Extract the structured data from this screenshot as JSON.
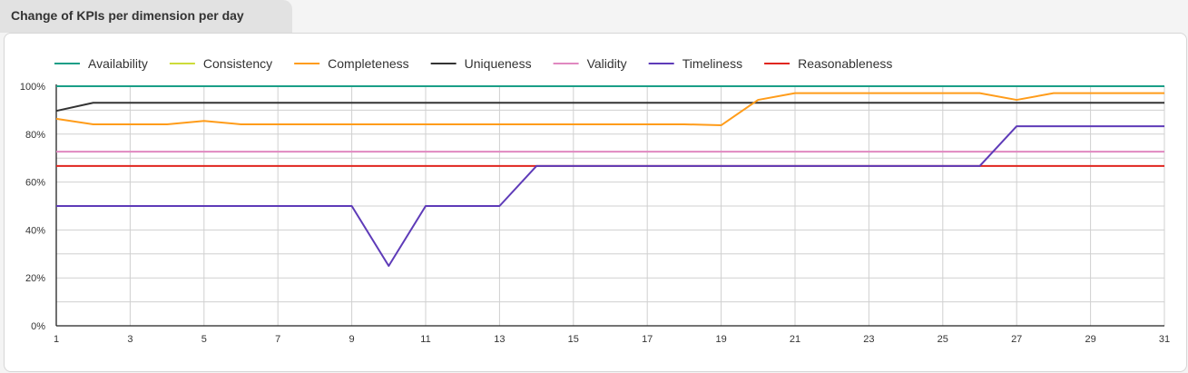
{
  "header": {
    "title": "Change of KPIs per dimension per day"
  },
  "chart_data": {
    "type": "line",
    "title": "Change of KPIs per dimension per day",
    "xlabel": "",
    "ylabel": "",
    "x": [
      1,
      2,
      3,
      4,
      5,
      6,
      7,
      8,
      9,
      10,
      11,
      12,
      13,
      14,
      15,
      16,
      17,
      18,
      19,
      20,
      21,
      22,
      23,
      24,
      25,
      26,
      27,
      28,
      29,
      30,
      31
    ],
    "xticks": [
      "1",
      "3",
      "5",
      "7",
      "9",
      "11",
      "13",
      "15",
      "17",
      "19",
      "21",
      "23",
      "25",
      "27",
      "29",
      "31"
    ],
    "yticks": [
      "0%",
      "20%",
      "40%",
      "60%",
      "80%",
      "100%"
    ],
    "ylim": [
      0,
      100
    ],
    "legend_position": "top-left",
    "grid": true,
    "series": [
      {
        "name": "Availability",
        "color": "#1a9e87",
        "values": [
          100,
          100,
          100,
          100,
          100,
          100,
          100,
          100,
          100,
          100,
          100,
          100,
          100,
          100,
          100,
          100,
          100,
          100,
          100,
          100,
          100,
          100,
          100,
          100,
          100,
          100,
          100,
          100,
          100,
          100,
          100
        ]
      },
      {
        "name": "Consistency",
        "color": "#cddc39",
        "values": [
          100,
          100,
          100,
          100,
          100,
          100,
          100,
          100,
          100,
          100,
          100,
          100,
          100,
          100,
          100,
          100,
          100,
          100,
          100,
          100,
          100,
          100,
          100,
          100,
          100,
          100,
          100,
          100,
          100,
          100,
          100
        ]
      },
      {
        "name": "Completeness",
        "color": "#ff9c1a",
        "values": [
          86.4,
          84.1,
          84.1,
          84.1,
          85.5,
          84.1,
          84.1,
          84.1,
          84.1,
          84.1,
          84.1,
          84.1,
          84.1,
          84.1,
          84.1,
          84.1,
          84.1,
          84.1,
          83.7,
          94.3,
          97.1,
          97.1,
          97.1,
          97.1,
          97.1,
          97.1,
          94.3,
          97.1,
          97.1,
          97.1,
          97.1
        ]
      },
      {
        "name": "Uniqueness",
        "color": "#333333",
        "values": [
          89.7,
          93.1,
          93.1,
          93.1,
          93.1,
          93.1,
          93.1,
          93.1,
          93.1,
          93.1,
          93.1,
          93.1,
          93.1,
          93.1,
          93.1,
          93.1,
          93.1,
          93.1,
          93.1,
          93.1,
          93.1,
          93.1,
          93.1,
          93.1,
          93.1,
          93.1,
          93.1,
          93.1,
          93.1,
          93.1,
          93.1
        ]
      },
      {
        "name": "Validity",
        "color": "#e088c0",
        "values": [
          72.7,
          72.7,
          72.7,
          72.7,
          72.7,
          72.7,
          72.7,
          72.7,
          72.7,
          72.7,
          72.7,
          72.7,
          72.7,
          72.7,
          72.7,
          72.7,
          72.7,
          72.7,
          72.7,
          72.7,
          72.7,
          72.7,
          72.7,
          72.7,
          72.7,
          72.7,
          72.7,
          72.7,
          72.7,
          72.7,
          72.7
        ]
      },
      {
        "name": "Timeliness",
        "color": "#5e3bb8",
        "values": [
          50,
          50,
          50,
          50,
          50,
          50,
          50,
          50,
          50,
          25,
          50,
          50,
          50,
          66.7,
          66.7,
          66.7,
          66.7,
          66.7,
          66.7,
          66.7,
          66.7,
          66.7,
          66.7,
          66.7,
          66.7,
          66.7,
          83.3,
          83.3,
          83.3,
          83.3,
          83.3
        ]
      },
      {
        "name": "Reasonableness",
        "color": "#e0261f",
        "values": [
          66.7,
          66.7,
          66.7,
          66.7,
          66.7,
          66.7,
          66.7,
          66.7,
          66.7,
          66.7,
          66.7,
          66.7,
          66.7,
          66.7,
          66.7,
          66.7,
          66.7,
          66.7,
          66.7,
          66.7,
          66.7,
          66.7,
          66.7,
          66.7,
          66.7,
          66.7,
          66.7,
          66.7,
          66.7,
          66.7,
          66.7
        ]
      }
    ]
  }
}
